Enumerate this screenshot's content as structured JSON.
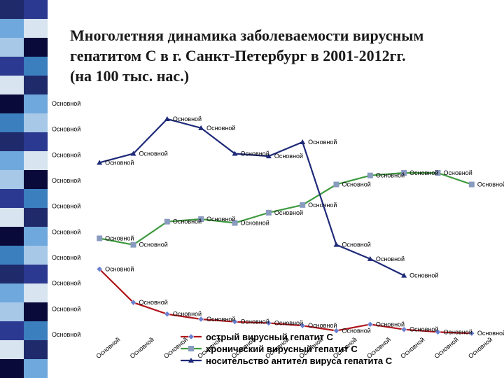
{
  "title_lines": [
    "Многолетняя динамика заболеваемости вирусным",
    "гепатитом С в г. Санкт-Петербург в 2001-2012гг.",
    "(на 100 тыс. нас.)"
  ],
  "colors": {
    "stripe": [
      "#1f2a6b",
      "#6fa8dc",
      "#a8c8e8",
      "#2b3990",
      "#d8e4f0",
      "#0a0a3a",
      "#3b7fbf"
    ],
    "acute": "#b0151b",
    "chronic": "#3f9a3f",
    "carrier": "#1e2a78"
  },
  "chart_data": {
    "type": "line",
    "placeholder_label": "Основной",
    "y_tick_labels": [
      "Основной",
      "Основной",
      "Основной",
      "Основной",
      "Основной",
      "Основной",
      "Основной",
      "Основной",
      "Основной",
      "Основной"
    ],
    "x_tick_labels": [
      "Основной",
      "Основной",
      "Основной",
      "Основной",
      "Основной",
      "Основной",
      "Основной",
      "Основной",
      "Основной",
      "Основной",
      "Основной",
      "Основной"
    ],
    "ylim": [
      0,
      9
    ],
    "grid": false,
    "legend_position": "bottom",
    "series": [
      {
        "name": "острый вирусный гепатит С",
        "marker": "diamond",
        "values": [
          2.55,
          1.25,
          0.8,
          0.6,
          0.5,
          0.45,
          0.35,
          0.15,
          0.4,
          0.2,
          0.1,
          0.05
        ]
      },
      {
        "name": "хронический вирусный гепатит С",
        "marker": "square",
        "values": [
          3.75,
          3.5,
          4.4,
          4.5,
          4.35,
          4.75,
          5.05,
          5.85,
          6.2,
          6.3,
          6.3,
          5.85
        ]
      },
      {
        "name": "носительство антител вируса гепатита С",
        "marker": "triangle",
        "values": [
          6.7,
          7.05,
          8.4,
          8.05,
          7.05,
          6.95,
          7.5,
          3.5,
          2.95,
          2.3
        ]
      }
    ],
    "data_labels": "Основной"
  }
}
